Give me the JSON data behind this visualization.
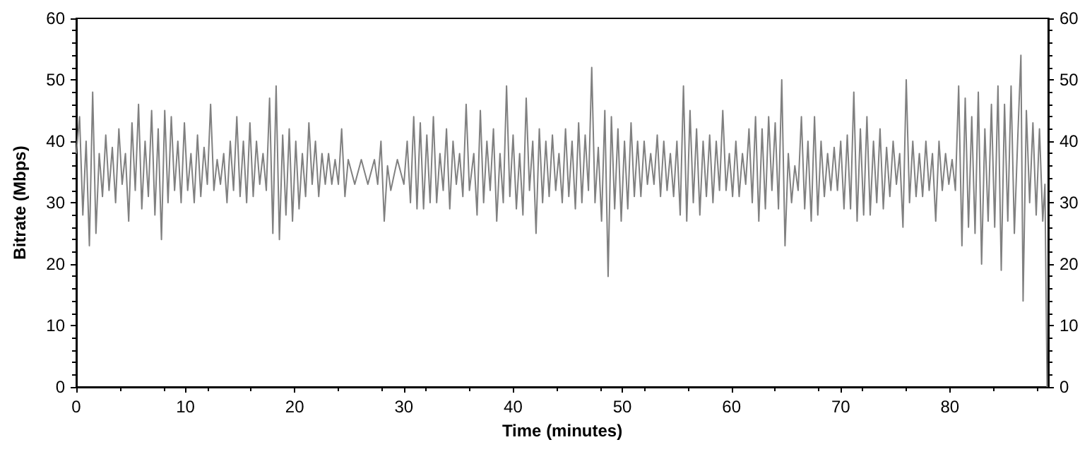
{
  "chart_data": {
    "type": "line",
    "xlabel": "Time (minutes)",
    "ylabel": "Bitrate (Mbps)",
    "xlim": [
      0,
      89
    ],
    "xticks": [
      0,
      10,
      20,
      30,
      40,
      50,
      60,
      70,
      80
    ],
    "ylim": [
      0,
      60
    ],
    "yticks": [
      0,
      10,
      20,
      30,
      40,
      50,
      60
    ],
    "y2lim": [
      0,
      60
    ],
    "y2ticks": [
      0,
      10,
      20,
      30,
      40,
      50,
      60
    ],
    "grid": false,
    "marker": "none",
    "line_style": "solid",
    "series": [
      {
        "color": "#808080",
        "x": [
          0,
          0.3,
          0.6,
          0.9,
          1.2,
          1.5,
          1.8,
          2.1,
          2.4,
          2.7,
          3.0,
          3.3,
          3.6,
          3.9,
          4.2,
          4.5,
          4.8,
          5.1,
          5.4,
          5.7,
          6.0,
          6.3,
          6.6,
          6.9,
          7.2,
          7.5,
          7.8,
          8.1,
          8.4,
          8.7,
          9.0,
          9.3,
          9.6,
          9.9,
          10.2,
          10.5,
          10.8,
          11.1,
          11.4,
          11.7,
          12.0,
          12.3,
          12.6,
          12.9,
          13.2,
          13.5,
          13.8,
          14.1,
          14.4,
          14.7,
          15.0,
          15.3,
          15.6,
          15.9,
          16.2,
          16.5,
          16.8,
          17.1,
          17.4,
          17.7,
          18.0,
          18.3,
          18.6,
          18.9,
          19.2,
          19.5,
          19.8,
          20.1,
          20.4,
          20.7,
          21.0,
          21.3,
          21.6,
          21.9,
          22.2,
          22.5,
          22.8,
          23.1,
          23.4,
          23.7,
          24.0,
          24.3,
          24.6,
          24.9,
          25.5,
          26.1,
          26.7,
          27.3,
          27.6,
          27.9,
          28.2,
          28.5,
          28.8,
          29.4,
          30.0,
          30.3,
          30.6,
          30.9,
          31.2,
          31.5,
          31.8,
          32.1,
          32.4,
          32.7,
          33.0,
          33.3,
          33.6,
          33.9,
          34.2,
          34.5,
          34.8,
          35.1,
          35.4,
          35.7,
          36.0,
          36.4,
          36.7,
          37.0,
          37.3,
          37.6,
          37.9,
          38.2,
          38.5,
          38.8,
          39.1,
          39.4,
          39.7,
          40.0,
          40.3,
          40.6,
          40.9,
          41.2,
          41.5,
          41.8,
          42.1,
          42.4,
          42.7,
          43.0,
          43.3,
          43.6,
          43.9,
          44.2,
          44.5,
          44.8,
          45.1,
          45.4,
          45.7,
          46.0,
          46.3,
          46.6,
          46.9,
          47.2,
          47.5,
          47.8,
          48.1,
          48.4,
          48.7,
          49.0,
          49.3,
          49.6,
          49.9,
          50.2,
          50.5,
          50.8,
          51.1,
          51.4,
          51.7,
          52.0,
          52.3,
          52.6,
          52.9,
          53.2,
          53.5,
          53.8,
          54.1,
          54.4,
          54.7,
          55.0,
          55.3,
          55.6,
          55.9,
          56.2,
          56.5,
          56.8,
          57.1,
          57.4,
          57.7,
          58.0,
          58.3,
          58.6,
          58.9,
          59.2,
          59.5,
          59.8,
          60.1,
          60.4,
          60.7,
          61.0,
          61.3,
          61.6,
          61.9,
          62.2,
          62.5,
          62.8,
          63.1,
          63.4,
          63.7,
          64.0,
          64.3,
          64.6,
          64.9,
          65.2,
          65.5,
          65.8,
          66.1,
          66.4,
          66.7,
          67.0,
          67.3,
          67.6,
          67.9,
          68.2,
          68.5,
          68.8,
          69.1,
          69.4,
          69.7,
          70.0,
          70.3,
          70.6,
          70.9,
          71.2,
          71.5,
          71.8,
          72.1,
          72.4,
          72.7,
          73.0,
          73.3,
          73.6,
          73.9,
          74.2,
          74.5,
          74.8,
          75.1,
          75.4,
          75.7,
          76.0,
          76.3,
          76.6,
          76.9,
          77.2,
          77.5,
          77.8,
          78.1,
          78.4,
          78.7,
          79.0,
          79.3,
          79.6,
          79.9,
          80.2,
          80.5,
          80.8,
          81.1,
          81.4,
          81.7,
          82.0,
          82.3,
          82.6,
          82.9,
          83.2,
          83.5,
          83.8,
          84.1,
          84.4,
          84.7,
          85.0,
          85.3,
          85.6,
          85.9,
          86.2,
          86.5,
          86.7,
          87.0,
          87.3,
          87.6,
          87.9,
          88.2,
          88.5,
          88.7,
          88.9
        ],
        "values": [
          38,
          44,
          28,
          40,
          23,
          48,
          25,
          38,
          31,
          41,
          32,
          39,
          30,
          42,
          33,
          38,
          27,
          43,
          32,
          46,
          29,
          40,
          31,
          45,
          28,
          42,
          24,
          45,
          30,
          44,
          32,
          40,
          30,
          43,
          32,
          38,
          30,
          41,
          31,
          39,
          33,
          46,
          32,
          37,
          33,
          38,
          30,
          40,
          32,
          44,
          31,
          40,
          30,
          43,
          31,
          40,
          33,
          38,
          32,
          47,
          25,
          49,
          24,
          41,
          28,
          42,
          27,
          40,
          29,
          38,
          31,
          43,
          33,
          40,
          31,
          38,
          33,
          38,
          33,
          37,
          33,
          42,
          31,
          37,
          33,
          37,
          33,
          37,
          33,
          40,
          27,
          36,
          32,
          37,
          33,
          40,
          30,
          44,
          29,
          43,
          29,
          41,
          30,
          44,
          30,
          38,
          32,
          42,
          29,
          40,
          33,
          38,
          31,
          46,
          32,
          38,
          28,
          45,
          30,
          40,
          32,
          42,
          27,
          38,
          30,
          49,
          31,
          41,
          29,
          38,
          28,
          47,
          32,
          40,
          25,
          42,
          30,
          40,
          31,
          41,
          32,
          38,
          30,
          42,
          31,
          40,
          29,
          43,
          30,
          41,
          32,
          52,
          30,
          39,
          27,
          45,
          18,
          44,
          29,
          42,
          27,
          40,
          29,
          43,
          31,
          40,
          31,
          40,
          33,
          38,
          33,
          41,
          31,
          40,
          32,
          38,
          31,
          40,
          28,
          49,
          27,
          45,
          30,
          42,
          28,
          40,
          31,
          41,
          30,
          40,
          32,
          45,
          32,
          38,
          31,
          40,
          31,
          38,
          33,
          42,
          30,
          44,
          27,
          42,
          29,
          44,
          32,
          43,
          29,
          50,
          23,
          38,
          30,
          36,
          32,
          44,
          29,
          40,
          27,
          44,
          28,
          40,
          31,
          38,
          32,
          39,
          32,
          40,
          29,
          41,
          29,
          48,
          27,
          42,
          28,
          44,
          28,
          40,
          30,
          42,
          29,
          39,
          31,
          40,
          33,
          38,
          26,
          50,
          30,
          40,
          31,
          38,
          31,
          40,
          32,
          38,
          27,
          40,
          32,
          38,
          33,
          37,
          32,
          49,
          23,
          47,
          26,
          44,
          25,
          48,
          20,
          42,
          27,
          46,
          26,
          49,
          19,
          46,
          27,
          49,
          25,
          40,
          54,
          14,
          45,
          30,
          43,
          28,
          42,
          27,
          33,
          0
        ]
      }
    ]
  }
}
